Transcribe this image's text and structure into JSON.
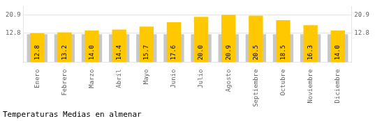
{
  "chart_data": {
    "type": "bar",
    "title": "Temperaturas Medias en almenar",
    "categories": [
      "Enero",
      "Febrero",
      "Marzo",
      "Abril",
      "Mayo",
      "Junio",
      "Julio",
      "Agosto",
      "Septiembre",
      "Octubre",
      "Noviembre",
      "Diciembre"
    ],
    "series": [
      {
        "color": "#C8C8C8",
        "values": [
          12.3,
          12.3,
          12.3,
          12.3,
          12.3,
          12.3,
          12.3,
          12.3,
          12.3,
          12.3,
          12.3,
          12.3
        ]
      },
      {
        "color": "#FFC800",
        "values": [
          12.8,
          13.2,
          14.0,
          14.4,
          15.7,
          17.6,
          20.0,
          20.9,
          20.5,
          18.5,
          16.3,
          14.0
        ],
        "value_labels": [
          "12.8",
          "13.2",
          "14.0",
          "14.4",
          "15.7",
          "17.6",
          "20.0",
          "20.9",
          "20.5",
          "18.5",
          "16.3",
          "14.0"
        ],
        "data_labels": true
      }
    ],
    "ylim": [
      0.0,
      24.5
    ],
    "yticks": [
      12.8,
      20.9
    ],
    "y2lim": [
      0.0,
      24.5
    ],
    "y2ticks": [
      12.8,
      20.9
    ],
    "grid": true
  }
}
